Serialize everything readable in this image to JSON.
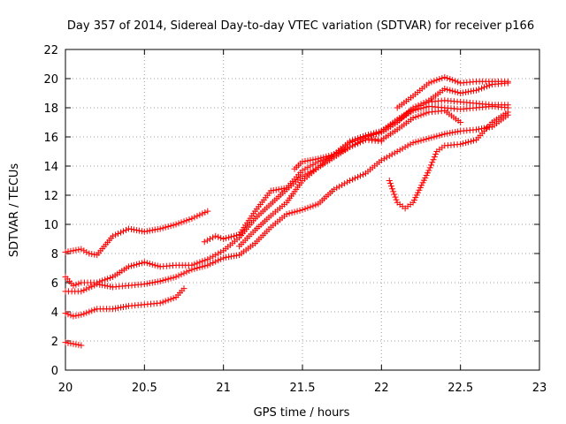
{
  "chart_data": {
    "type": "scatter",
    "title": "Day 357 of 2014, Sidereal Day-to-day VTEC variation (SDTVAR) for receiver p166",
    "xlabel": "GPS time / hours",
    "ylabel": "SDTVAR / TECUs",
    "xlim": [
      20,
      23
    ],
    "ylim": [
      0,
      22
    ],
    "xticks": [
      20,
      20.5,
      21,
      21.5,
      22,
      22.5,
      23
    ],
    "xtick_labels": [
      "20",
      "20.5",
      "21",
      "21.5",
      "22",
      "22.5",
      "23"
    ],
    "yticks": [
      0,
      2,
      4,
      6,
      8,
      10,
      12,
      14,
      16,
      18,
      20,
      22
    ],
    "ytick_labels": [
      "0",
      "2",
      "4",
      "6",
      "8",
      "10",
      "12",
      "14",
      "16",
      "18",
      "20",
      "22"
    ],
    "grid": true,
    "marker": "+",
    "color": "#ff0000",
    "series": [
      {
        "name": "track-1",
        "x": [
          20.0,
          20.05,
          20.1
        ],
        "y": [
          1.9,
          1.8,
          1.7
        ]
      },
      {
        "name": "track-2",
        "x": [
          20.0,
          20.05,
          20.1,
          20.15,
          20.2,
          20.3,
          20.4,
          20.5,
          20.6,
          20.7,
          20.75
        ],
        "y": [
          3.9,
          3.7,
          3.8,
          4.0,
          4.2,
          4.2,
          4.4,
          4.5,
          4.6,
          5.0,
          5.6
        ]
      },
      {
        "name": "track-3",
        "x": [
          20.0,
          20.1,
          20.2,
          20.3,
          20.4,
          20.5,
          20.6,
          20.7,
          20.8,
          20.9,
          21.0,
          21.1,
          21.2,
          21.3,
          21.4,
          21.5,
          21.6,
          21.7,
          21.8,
          21.9,
          22.0,
          22.1,
          22.2,
          22.3,
          22.4,
          22.5,
          22.6,
          22.7,
          22.8
        ],
        "y": [
          5.4,
          5.4,
          5.9,
          5.7,
          5.8,
          5.9,
          6.1,
          6.4,
          6.9,
          7.2,
          7.7,
          7.9,
          8.7,
          9.8,
          10.7,
          11.0,
          11.4,
          12.4,
          13.0,
          13.5,
          14.4,
          15.0,
          15.6,
          15.9,
          16.2,
          16.4,
          16.5,
          16.7,
          17.5
        ]
      },
      {
        "name": "track-4",
        "x": [
          20.0,
          20.05,
          20.1,
          20.2,
          20.3,
          20.4,
          20.5,
          20.6,
          20.7,
          20.8,
          20.9,
          21.0,
          21.1,
          21.2,
          21.3,
          21.4,
          21.5,
          21.6,
          21.7,
          21.8,
          21.9,
          22.0,
          22.1,
          22.2,
          22.3,
          22.4,
          22.5,
          22.6,
          22.7,
          22.8
        ],
        "y": [
          6.4,
          5.8,
          6.0,
          6.0,
          6.4,
          7.1,
          7.4,
          7.1,
          7.2,
          7.2,
          7.6,
          8.2,
          9.1,
          10.4,
          11.4,
          12.4,
          13.3,
          13.9,
          14.8,
          15.7,
          16.1,
          16.4,
          17.1,
          17.8,
          18.1,
          18.0,
          17.9,
          18.0,
          18.1,
          18.0
        ]
      },
      {
        "name": "track-5",
        "x": [
          20.0,
          20.1,
          20.15,
          20.2,
          20.3,
          20.4,
          20.5,
          20.6,
          20.7,
          20.8,
          20.9
        ],
        "y": [
          8.1,
          8.3,
          8.0,
          7.9,
          9.2,
          9.7,
          9.5,
          9.7,
          10.0,
          10.4,
          10.9
        ]
      },
      {
        "name": "track-6",
        "x": [
          20.88,
          20.95,
          21.0,
          21.1,
          21.2,
          21.3,
          21.4,
          21.5,
          21.6,
          21.7,
          21.8,
          21.9,
          22.0,
          22.1,
          22.2,
          22.3,
          22.4,
          22.5,
          22.6,
          22.7,
          22.8
        ],
        "y": [
          8.8,
          9.2,
          9.0,
          9.3,
          10.9,
          12.3,
          12.5,
          13.7,
          14.3,
          14.7,
          15.6,
          16.0,
          16.3,
          17.0,
          18.0,
          18.5,
          19.3,
          19.0,
          19.2,
          19.6,
          19.7
        ]
      },
      {
        "name": "track-7",
        "x": [
          21.1,
          21.2,
          21.3,
          21.4,
          21.5,
          21.6,
          21.7,
          21.8,
          21.9,
          22.0
        ],
        "y": [
          8.5,
          9.6,
          10.6,
          11.5,
          13.0,
          13.9,
          14.6,
          15.3,
          15.8,
          15.7
        ]
      },
      {
        "name": "track-8",
        "x": [
          21.45,
          21.5,
          21.6,
          21.7,
          21.8,
          21.9,
          22.0,
          22.1,
          22.2,
          22.3,
          22.4,
          22.5
        ],
        "y": [
          13.8,
          14.3,
          14.5,
          14.8,
          15.3,
          15.9,
          15.8,
          16.5,
          17.3,
          17.7,
          17.8,
          17.0
        ]
      },
      {
        "name": "track-9",
        "x": [
          22.1,
          22.2,
          22.3,
          22.4,
          22.5,
          22.6,
          22.7,
          22.8
        ],
        "y": [
          18.0,
          18.8,
          19.7,
          20.1,
          19.7,
          19.8,
          19.8,
          19.8
        ]
      },
      {
        "name": "track-10",
        "x": [
          22.05,
          22.1,
          22.15,
          22.2,
          22.3,
          22.35,
          22.4,
          22.5,
          22.6,
          22.7,
          22.8
        ],
        "y": [
          13.0,
          11.5,
          11.1,
          11.5,
          13.7,
          15.0,
          15.4,
          15.5,
          15.8,
          17.0,
          17.7
        ]
      },
      {
        "name": "track-11",
        "x": [
          22.0,
          22.1,
          22.2,
          22.3,
          22.4,
          22.5,
          22.6,
          22.7,
          22.8
        ],
        "y": [
          16.4,
          17.2,
          17.9,
          18.4,
          18.5,
          18.4,
          18.3,
          18.2,
          18.2
        ]
      }
    ]
  }
}
